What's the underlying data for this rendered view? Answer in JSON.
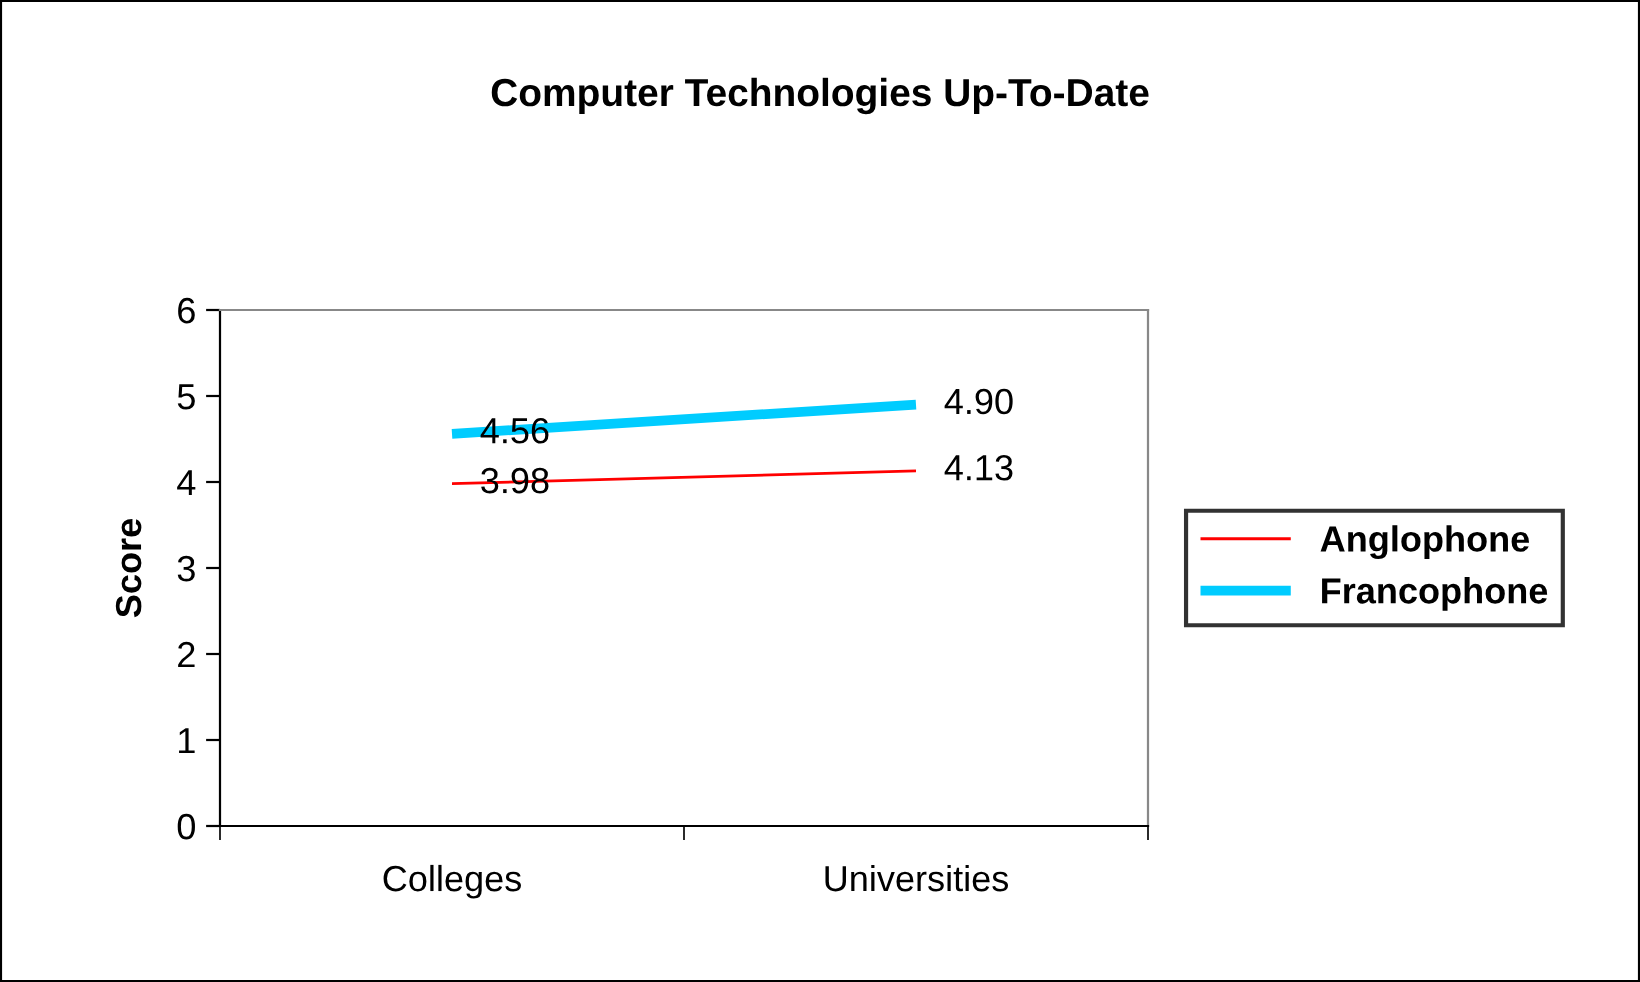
{
  "chart_data": {
    "type": "line",
    "title": "Computer Technologies Up-To-Date",
    "ylabel": "Score",
    "categories": [
      "Colleges",
      "Universities"
    ],
    "series": [
      {
        "name": "Anglophone",
        "color": "#ff0000",
        "values": [
          3.98,
          4.13
        ],
        "value_labels": [
          "3.98",
          "4.13"
        ]
      },
      {
        "name": "Francophone",
        "color": "#00ccff",
        "values": [
          4.56,
          4.9
        ],
        "value_labels": [
          "4.56",
          "4.90"
        ]
      }
    ],
    "ylim": [
      0,
      6
    ],
    "yticks": [
      0,
      1,
      2,
      3,
      4,
      5,
      6
    ],
    "grid": false,
    "legend": "right",
    "marker": "none"
  }
}
